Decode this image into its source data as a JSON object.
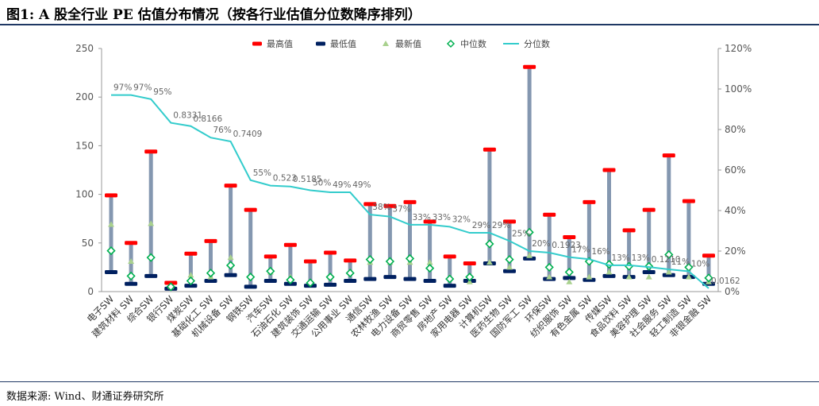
{
  "header": {
    "title": "图1: A 股全行业 PE 估值分布情况（按各行业估值分位数降序排列）",
    "source": "数据来源: Wind、财通证券研究所"
  },
  "chart_data": {
    "type": "bar",
    "categories": [
      "电子SW",
      "建筑材料 SW",
      "综合SW",
      "银行SW",
      "煤炭SW",
      "基础化工 SW",
      "机械设备 SW",
      "钢铁SW",
      "汽车SW",
      "石油石化 SW",
      "建筑装饰 SW",
      "交通运输 SW",
      "公用事业 SW",
      "通信SW",
      "农林牧渔 SW",
      "电力设备 SW",
      "商贸零售 SW",
      "房地产 SW",
      "家用电器 SW",
      "计算机SW",
      "医药生物 SW",
      "国防军工 SW",
      "环保SW",
      "纺织服饰 SW",
      "有色金属 SW",
      "传媒SW",
      "食品饮料 SW",
      "美容护理 SW",
      "社会服务 SW",
      "轻工制造 SW",
      "非银金融 SW"
    ],
    "series": [
      {
        "name": "最高值",
        "color": "#ff0000",
        "values": [
          99,
          50,
          144,
          9,
          39,
          52,
          109,
          84,
          36,
          48,
          31,
          40,
          32,
          90,
          88,
          92,
          72,
          36,
          29,
          146,
          72,
          231,
          79,
          56,
          92,
          125,
          63,
          84,
          140,
          93,
          37
        ]
      },
      {
        "name": "最低值",
        "color": "#002060",
        "values": [
          20,
          8,
          16,
          3,
          6,
          11,
          17,
          5,
          11,
          8,
          6,
          7,
          11,
          13,
          15,
          13,
          11,
          6,
          11,
          29,
          21,
          34,
          13,
          14,
          12,
          16,
          15,
          20,
          17,
          15,
          8
        ]
      },
      {
        "name": "最新值",
        "color": "#a9d18e",
        "values": [
          69,
          31,
          70,
          5,
          17,
          15,
          35,
          15,
          20,
          15,
          10,
          15,
          20,
          30,
          30,
          30,
          30,
          15,
          10,
          30,
          25,
          37,
          15,
          10,
          15,
          20,
          15,
          15,
          20,
          15,
          10
        ]
      },
      {
        "name": "中位数",
        "color": "#99ff00",
        "values": [
          42,
          16,
          35,
          5,
          11,
          19,
          27,
          15,
          21,
          12,
          9,
          15,
          19,
          33,
          31,
          34,
          24,
          13,
          15,
          49,
          33,
          61,
          25,
          20,
          31,
          28,
          26,
          26,
          38,
          25,
          14
        ]
      },
      {
        "name": "分位数",
        "color": "#33cccc",
        "axis": "right",
        "values": [
          0.97,
          0.97,
          0.95,
          0.8331,
          0.8166,
          0.76,
          0.7409,
          0.55,
          0.523,
          0.5185,
          0.5,
          0.49,
          0.49,
          0.38,
          0.37,
          0.33,
          0.33,
          0.32,
          0.29,
          0.29,
          0.25,
          0.2,
          0.1923,
          0.17,
          0.16,
          0.13,
          0.13,
          0.121,
          0.11,
          0.1,
          0.0162
        ]
      }
    ],
    "percentile_labels": [
      "97%",
      "97%",
      "95%",
      "0.8331",
      "0.8166",
      "76%",
      "0.7409",
      "55%",
      "0.523",
      "0.5185",
      "50%",
      "49%",
      "49%",
      "38%",
      "37%",
      "33%",
      "33%",
      "32%",
      "29%",
      "29%",
      "25%",
      "20%",
      "0.1923",
      "17%",
      "16%",
      "13%",
      "13%",
      "0.1210",
      "11%",
      "10%",
      "0.0162"
    ],
    "ylim": [
      0,
      250
    ],
    "yticks": [
      "0",
      "50",
      "100",
      "150",
      "200",
      "250"
    ],
    "y2lim": [
      0,
      1.2
    ],
    "y2ticks": [
      "0%",
      "20%",
      "40%",
      "60%",
      "80%",
      "100%",
      "120%"
    ],
    "legend": [
      "最高值",
      "最低值",
      "最新值",
      "中位数",
      "分位数"
    ],
    "legend_position": "top",
    "grid": false
  }
}
